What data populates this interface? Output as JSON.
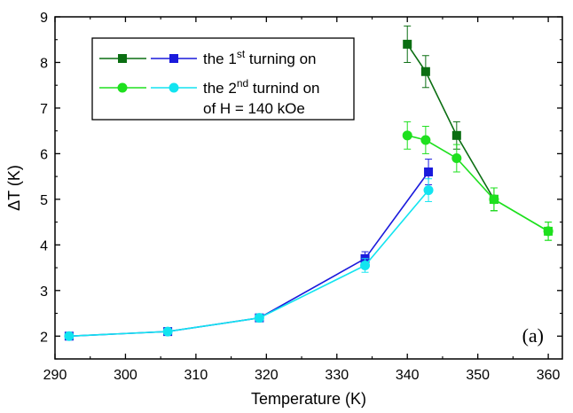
{
  "chart_data": {
    "type": "line",
    "xlabel": "Temperature (K)",
    "ylabel": "ΔT (K)",
    "xlim": [
      290,
      362
    ],
    "ylim": [
      1.5,
      9
    ],
    "xticks": [
      290,
      300,
      310,
      320,
      330,
      340,
      350,
      360
    ],
    "yticks": [
      2,
      3,
      4,
      5,
      6,
      7,
      8,
      9
    ],
    "panel_label": "(a)",
    "legend": {
      "position": "top-left",
      "entry1": {
        "prefix": "the 1",
        "sup": "st",
        "suffix": " turning on"
      },
      "entry2": {
        "prefix": "the 2",
        "sup": "nd",
        "suffix": " turnind on"
      },
      "note": "of H = 140 kOe"
    },
    "series": [
      {
        "group": "1st",
        "color": "#0b6e12",
        "marker": "square",
        "x": [
          340,
          342.6,
          347,
          352.3
        ],
        "y": [
          8.4,
          7.8,
          6.4,
          5.0
        ],
        "err": [
          0.4,
          0.35,
          0.3,
          0.25
        ]
      },
      {
        "group": "1st",
        "color": "#1a1adc",
        "marker": "square",
        "x": [
          292,
          306,
          319,
          334,
          343
        ],
        "y": [
          2.0,
          2.1,
          2.4,
          3.7,
          5.6
        ],
        "err": [
          0.05,
          0.05,
          0.08,
          0.15,
          0.28
        ]
      },
      {
        "group": "2nd",
        "color": "#1ee01e",
        "marker": "circle",
        "x": [
          340,
          342.6,
          347,
          352.3,
          360
        ],
        "y": [
          6.4,
          6.3,
          5.9,
          5.0,
          4.3
        ],
        "err": [
          0.3,
          0.3,
          0.3,
          0.25,
          0.2
        ]
      },
      {
        "group": "2nd",
        "color": "#12e4f0",
        "marker": "circle",
        "x": [
          292,
          306,
          319,
          334,
          343
        ],
        "y": [
          2.0,
          2.1,
          2.4,
          3.55,
          5.2
        ],
        "err": [
          0.05,
          0.05,
          0.08,
          0.15,
          0.25
        ]
      },
      {
        "group": "2nd",
        "color": "#1ee01e",
        "marker": "square",
        "x": [
          352.3,
          360
        ],
        "y": [
          5.0,
          4.3
        ],
        "err": [
          0.25,
          0.2
        ]
      }
    ]
  }
}
